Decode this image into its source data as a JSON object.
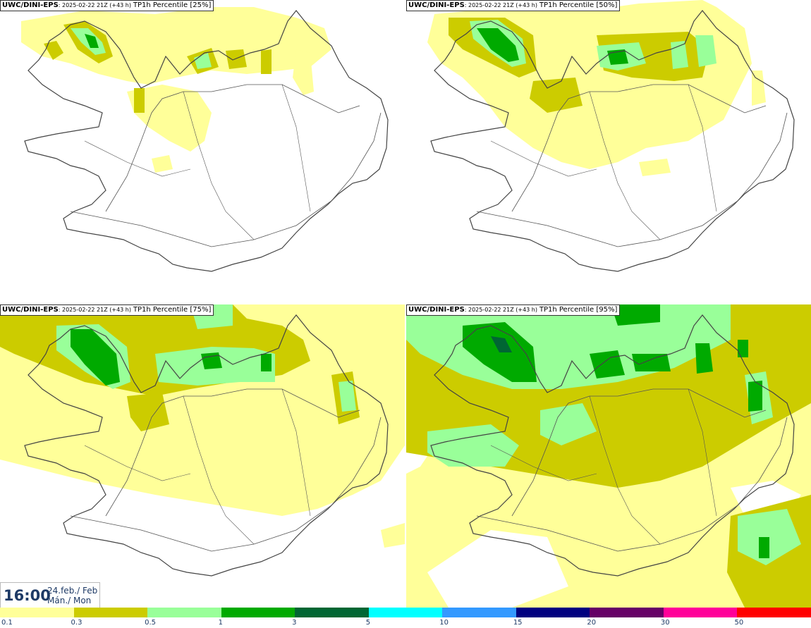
{
  "panels": [
    {
      "model": "UWC/DINI-EPS",
      "run": ": 2025-02-22 21Z (+43 h)",
      "product": "TP1h Percentile [25%]"
    },
    {
      "model": "UWC/DINI-EPS",
      "run": ": 2025-02-22 21Z (+43 h)",
      "product": "TP1h Percentile [50%]"
    },
    {
      "model": "UWC/DINI-EPS",
      "run": ": 2025-02-22 21Z (+43 h)",
      "product": "TP1h Percentile [75%]"
    },
    {
      "model": "UWC/DINI-EPS",
      "run": ": 2025-02-22 21Z (+43 h)",
      "product": "TP1h Percentile [95%]"
    }
  ],
  "valid_time": {
    "time": "16:00",
    "date_line1": "24.feb./ Feb",
    "date_line2": "Mán./ Mon"
  },
  "legend": {
    "colors": [
      "#ffff99",
      "#cccc00",
      "#99ff99",
      "#00aa00",
      "#006633",
      "#00ffff",
      "#3399ff",
      "#000080",
      "#660066",
      "#ff0099",
      "#ff0000"
    ],
    "ticks": [
      "0.1",
      "0.3",
      "0.5",
      "1",
      "3",
      "5",
      "10",
      "15",
      "20",
      "30",
      "50"
    ]
  },
  "colors": {
    "coastline": "#444444",
    "roads": "#555555",
    "background": "#ffffff"
  }
}
